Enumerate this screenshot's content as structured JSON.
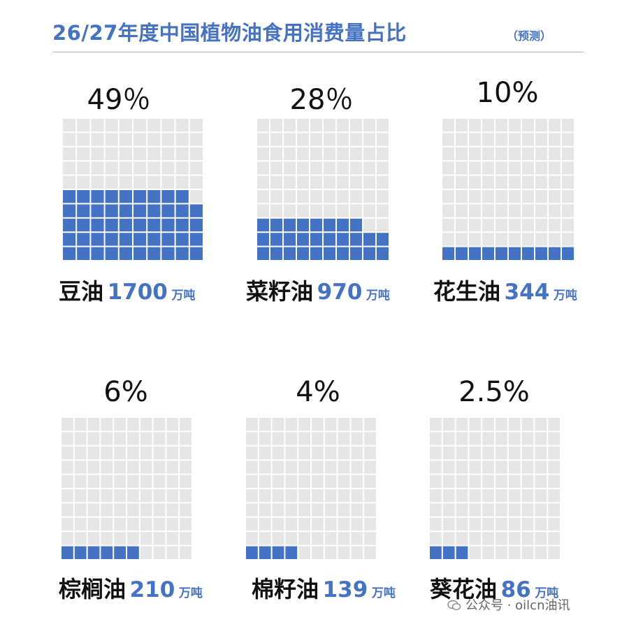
{
  "header": {
    "title": "26/27年度中国植物油食用消费量占比",
    "subtitle": "（预测）"
  },
  "colors": {
    "accent": "#4472c4",
    "empty": "#e6e6e6",
    "text": "#111111"
  },
  "chart_data": {
    "type": "waffle",
    "title": "26/27年度中国植物油食用消费量占比（预测）",
    "grid_cells": 100,
    "series": [
      {
        "name": "豆油",
        "percent_label": "49％",
        "percent": 49,
        "amount": "1700",
        "unit": "万吨"
      },
      {
        "name": "菜籽油",
        "percent_label": "28％",
        "percent": 28,
        "amount": "970",
        "unit": "万吨"
      },
      {
        "name": "花生油",
        "percent_label": "10%",
        "percent": 10,
        "amount": "344",
        "unit": "万吨"
      },
      {
        "name": "棕榈油",
        "percent_label": "6%",
        "percent": 6,
        "amount": "210",
        "unit": "万吨"
      },
      {
        "name": "棉籽油",
        "percent_label": "4%",
        "percent": 4,
        "amount": "139",
        "unit": "万吨"
      },
      {
        "name": "葵花油",
        "percent_label": "2.5%",
        "percent": 2.5,
        "amount": "86",
        "unit": "万吨"
      }
    ]
  },
  "footer": {
    "text": "公众号 · oilcn油讯",
    "icon": "wechat-icon"
  }
}
